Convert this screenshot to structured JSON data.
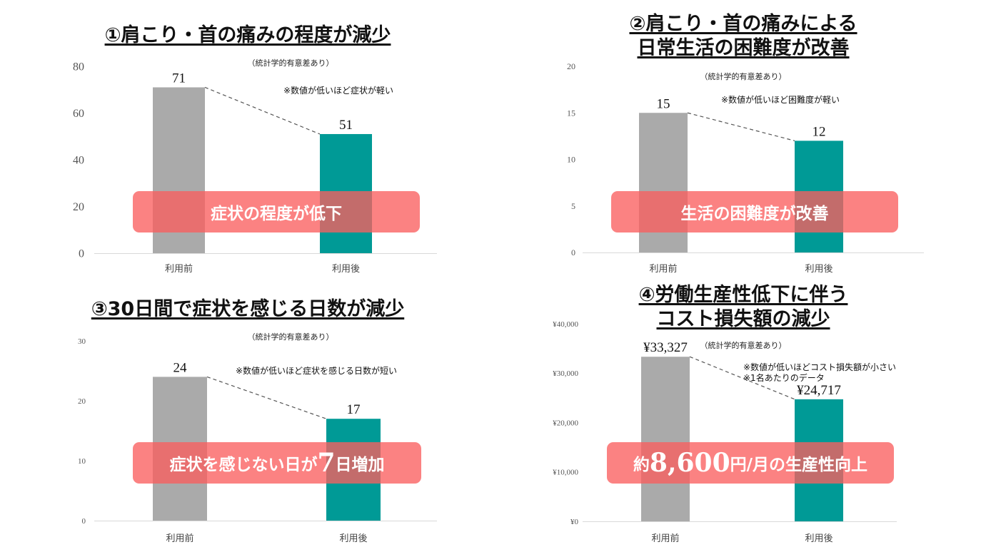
{
  "chart_data": [
    {
      "type": "bar",
      "title": "①肩こり・首の痛みの程度が減少",
      "title_lines": [
        "①肩こり・首の痛みの程度が減少"
      ],
      "subtitle": "（統計学的有意差あり）",
      "note_lines": [
        "※数値が低いほど症状が軽い"
      ],
      "categories": [
        "利用前",
        "利用後"
      ],
      "values": [
        71,
        51
      ],
      "value_labels": [
        "71",
        "51"
      ],
      "ylim": [
        0,
        80
      ],
      "yticks": [
        0,
        20,
        40,
        60,
        80
      ],
      "ytick_labels": [
        "0",
        "20",
        "40",
        "60",
        "80"
      ],
      "bar_colors": [
        "#aaaaaa",
        "#009a96"
      ],
      "banner_parts": [
        {
          "text": "症状の程度が低下",
          "big": false
        }
      ]
    },
    {
      "type": "bar",
      "title": "②肩こり・首の痛みによる日常生活の困難度が改善",
      "title_lines": [
        "②肩こり・首の痛みによる",
        "日常生活の困難度が改善"
      ],
      "subtitle": "（統計学的有意差あり）",
      "note_lines": [
        "※数値が低いほど困難度が軽い"
      ],
      "categories": [
        "利用前",
        "利用後"
      ],
      "values": [
        15,
        12
      ],
      "value_labels": [
        "15",
        "12"
      ],
      "ylim": [
        0,
        20
      ],
      "yticks": [
        0,
        5,
        10,
        15,
        20
      ],
      "ytick_labels": [
        "0",
        "5",
        "10",
        "15",
        "20"
      ],
      "bar_colors": [
        "#aaaaaa",
        "#009a96"
      ],
      "banner_parts": [
        {
          "text": "生活の困難度が改善",
          "big": false
        }
      ]
    },
    {
      "type": "bar",
      "title": "③30日間で症状を感じる日数が減少",
      "title_lines": [
        "③30日間で症状を感じる日数が減少"
      ],
      "subtitle": "（統計学的有意差あり）",
      "note_lines": [
        "※数値が低いほど症状を感じる日数が短い"
      ],
      "categories": [
        "利用前",
        "利用後"
      ],
      "values": [
        24,
        17
      ],
      "value_labels": [
        "24",
        "17"
      ],
      "ylim": [
        0,
        30
      ],
      "yticks": [
        0,
        10,
        20,
        30
      ],
      "ytick_labels": [
        "0",
        "10",
        "20",
        "30"
      ],
      "bar_colors": [
        "#aaaaaa",
        "#009a96"
      ],
      "banner_parts": [
        {
          "text": "症状を感じない日が",
          "big": false
        },
        {
          "text": "7",
          "big": true
        },
        {
          "text": "日増加",
          "big": false
        }
      ]
    },
    {
      "type": "bar",
      "title": "④労働生産性低下に伴うコスト損失額の減少",
      "title_lines": [
        "④労働生産性低下に伴う",
        "コスト損失額の減少"
      ],
      "subtitle": "（統計学的有意差あり）",
      "note_lines": [
        "※数値が低いほどコスト損失額が小さい",
        "※1名あたりのデータ"
      ],
      "categories": [
        "利用前",
        "利用後"
      ],
      "values": [
        33327,
        24717
      ],
      "value_labels": [
        "¥33,327",
        "¥24,717"
      ],
      "ylim": [
        0,
        40000
      ],
      "yticks": [
        0,
        10000,
        20000,
        30000,
        40000
      ],
      "ytick_labels": [
        "¥0",
        "¥10,000",
        "¥20,000",
        "¥30,000",
        "¥40,000"
      ],
      "bar_colors": [
        "#aaaaaa",
        "#009a96"
      ],
      "banner_parts": [
        {
          "text": "約",
          "big": false
        },
        {
          "text": "8,600",
          "big": true
        },
        {
          "text": "円/月の生産性向上",
          "big": false
        }
      ]
    }
  ]
}
